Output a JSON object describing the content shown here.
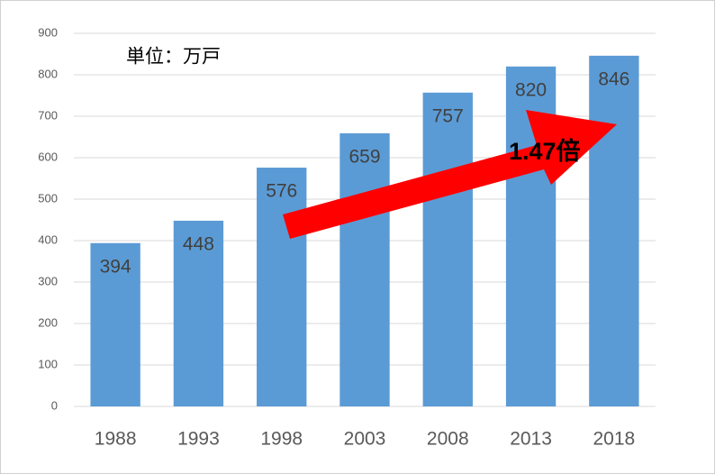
{
  "chart_data": {
    "type": "bar",
    "annotations": [
      "単位：万戸",
      "1.47倍"
    ],
    "categories": [
      "1988",
      "1993",
      "1998",
      "2003",
      "2008",
      "2013",
      "2018"
    ],
    "values": [
      394,
      448,
      576,
      659,
      757,
      820,
      846
    ],
    "color": "#5b9bd5",
    "ylim": [
      0,
      900
    ],
    "yticks": [
      0,
      100,
      200,
      300,
      400,
      500,
      600,
      700,
      800,
      900
    ],
    "grid": true
  }
}
